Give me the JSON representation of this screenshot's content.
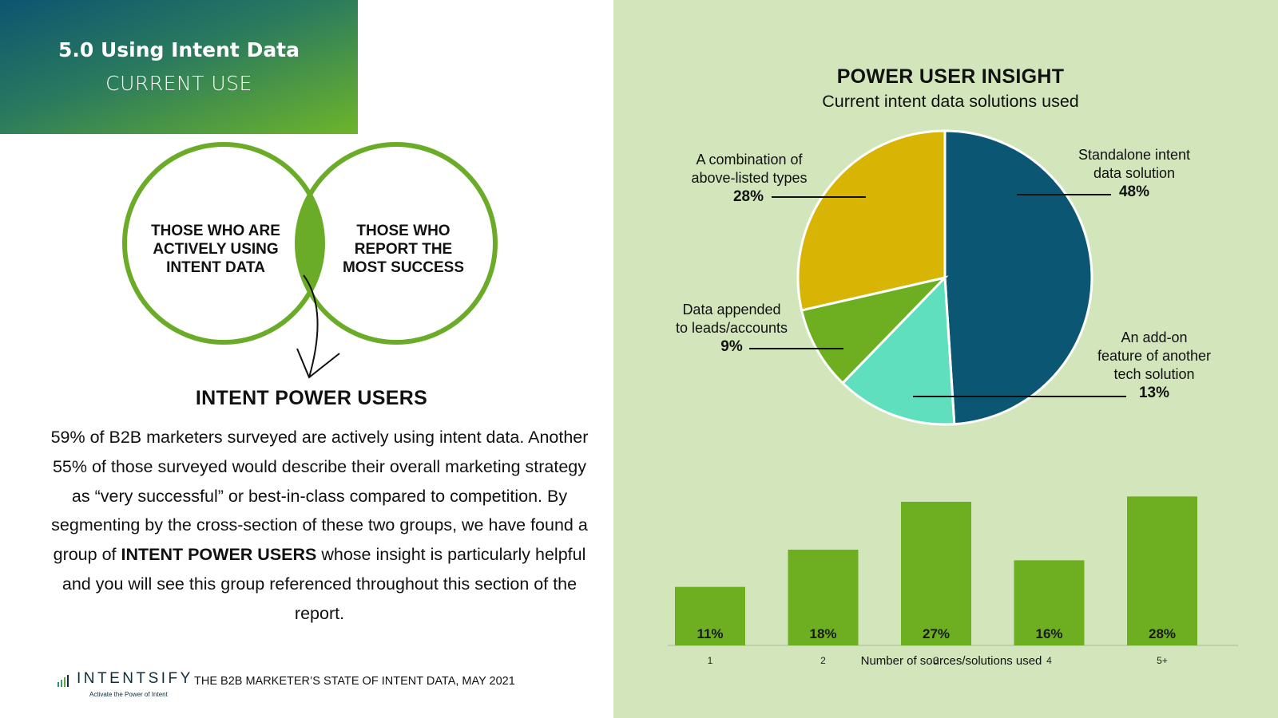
{
  "header": {
    "title": "5.0 Using Intent Data",
    "subtitle": "CURRENT USE"
  },
  "venn": {
    "left_label": [
      "THOSE WHO ARE",
      "ACTIVELY USING",
      "INTENT DATA"
    ],
    "right_label": [
      "THOSE WHO",
      "REPORT THE",
      "MOST SUCCESS"
    ],
    "result_title": "INTENT POWER USERS",
    "colors": {
      "ring": "#6aac27",
      "overlap": "#6aac27"
    }
  },
  "body": {
    "part1": "59% of B2B marketers surveyed are actively using intent data. Another 55% of those surveyed would describe their overall marketing strategy as “very successful” or best-in-class compared to competition. By segmenting by the cross-section of these two groups, we have found a group of ",
    "bold": "INTENT POWER USERS",
    "part2": " whose insight is particularly helpful and you will see this group referenced throughout this section of the report."
  },
  "footer": {
    "logo": "INTENTSIFY",
    "tagline": "Activate the Power of Intent",
    "report": "THE B2B MARKETER’S STATE OF INTENT DATA, MAY 2021"
  },
  "chart_data": [
    {
      "type": "pie",
      "title": "POWER USER INSIGHT",
      "subtitle": "Current intent data solutions used",
      "slices": [
        {
          "label": "Standalone intent data solution",
          "value": 48,
          "display": "48%",
          "color": "#0b5673"
        },
        {
          "label": "An add-on feature of another tech solution",
          "value": 13,
          "display": "13%",
          "color": "#60dfbe"
        },
        {
          "label": "Data appended to leads/accounts",
          "value": 9,
          "display": "9%",
          "color": "#6daf20"
        },
        {
          "label": "A combination of above-listed types",
          "value": 28,
          "display": "28%",
          "color": "#d8b405"
        }
      ],
      "label_text": {
        "standalone": [
          "Standalone intent",
          "data solution"
        ],
        "addon": [
          "An add-on",
          "feature of another",
          "tech solution"
        ],
        "appended": [
          "Data appended",
          "to leads/accounts"
        ],
        "combination": [
          "A combination of",
          "above-listed types"
        ]
      }
    },
    {
      "type": "bar",
      "xlabel": "Number of sources/solutions used",
      "ylabel": "",
      "categories": [
        "1",
        "2",
        "3",
        "4",
        "5+"
      ],
      "values": [
        11,
        18,
        27,
        16,
        28
      ],
      "data_labels": [
        "11%",
        "18%",
        "27%",
        "16%",
        "28%"
      ],
      "ylim": [
        0,
        30
      ],
      "grid": false,
      "color": "#6daf20"
    }
  ]
}
